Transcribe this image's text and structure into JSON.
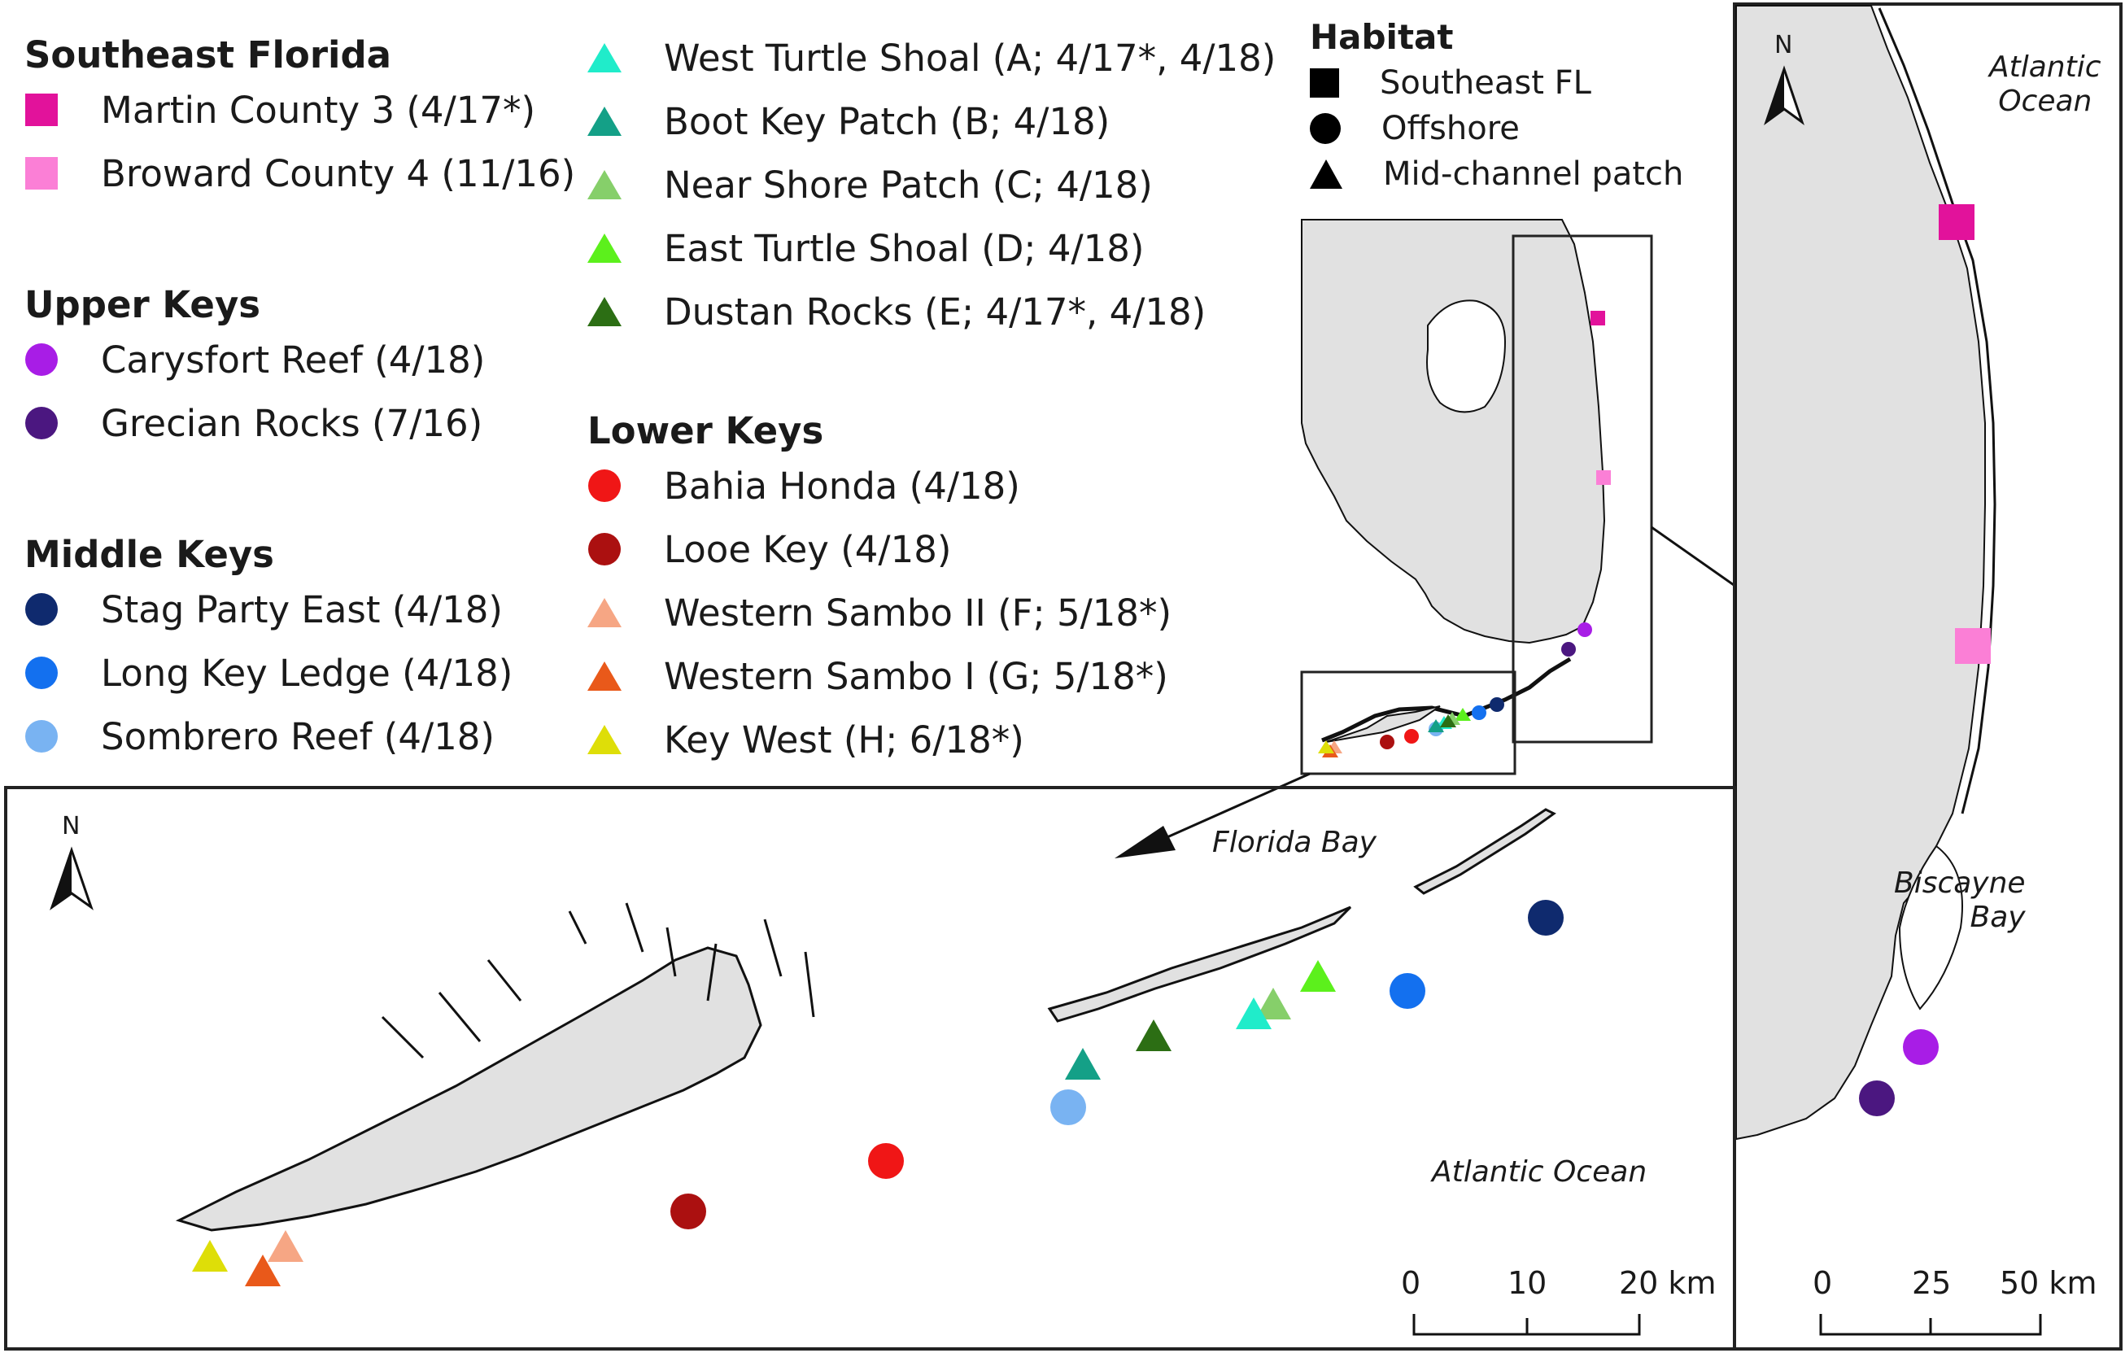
{
  "legend": {
    "groups": [
      {
        "title": "Southeast Florida",
        "sites": [
          {
            "label": "Martin County 3 (4/17*)",
            "shape": "square",
            "color": "#e2129b"
          },
          {
            "label": "Broward County 4 (11/16)",
            "shape": "square",
            "color": "#fb7fd6"
          }
        ]
      },
      {
        "title": "Upper Keys",
        "sites": [
          {
            "label": "Carysfort Reef (4/18)",
            "shape": "circle",
            "color": "#a81de6"
          },
          {
            "label": "Grecian Rocks (7/16)",
            "shape": "circle",
            "color": "#4b1780"
          }
        ]
      },
      {
        "title": "Middle Keys",
        "sites": [
          {
            "label": "Stag Party East (4/18)",
            "shape": "circle",
            "color": "#0f2a6e"
          },
          {
            "label": "Long Key Ledge (4/18)",
            "shape": "circle",
            "color": "#1370ef"
          },
          {
            "label": "Sombrero Reef (4/18)",
            "shape": "circle",
            "color": "#79b3f2"
          }
        ]
      },
      {
        "title": "",
        "sites": [
          {
            "label": "West Turtle Shoal (A; 4/17*, 4/18)",
            "shape": "triangle",
            "color": "#20ecca"
          },
          {
            "label": "Boot Key Patch (B; 4/18)",
            "shape": "triangle",
            "color": "#14a087"
          },
          {
            "label": "Near Shore Patch (C; 4/18)",
            "shape": "triangle",
            "color": "#86cf6a"
          },
          {
            "label": "East Turtle Shoal (D; 4/18)",
            "shape": "triangle",
            "color": "#5cf01c"
          },
          {
            "label": "Dustan Rocks (E; 4/17*, 4/18)",
            "shape": "triangle",
            "color": "#2c6e14"
          }
        ]
      },
      {
        "title": "Lower Keys",
        "sites": [
          {
            "label": "Bahia Honda (4/18)",
            "shape": "circle",
            "color": "#f01616"
          },
          {
            "label": "Looe Key (4/18)",
            "shape": "circle",
            "color": "#ab1010"
          },
          {
            "label": "Western Sambo II (F; 5/18*)",
            "shape": "triangle",
            "color": "#f6a684"
          },
          {
            "label": "Western Sambo I (G; 5/18*)",
            "shape": "triangle",
            "color": "#e9591a"
          },
          {
            "label": "Key West (H; 6/18*)",
            "shape": "triangle",
            "color": "#dede08"
          }
        ]
      }
    ]
  },
  "habitat": {
    "title": "Habitat",
    "items": [
      {
        "label": "Southeast FL",
        "shape": "square"
      },
      {
        "label": "Offshore",
        "shape": "circle"
      },
      {
        "label": "Mid-channel patch",
        "shape": "triangle"
      }
    ]
  },
  "labels": {
    "north": "N",
    "florida_bay": "Florida Bay",
    "atlantic_ocean": "Atlantic Ocean",
    "atlantic_ocean_line1": "Atlantic",
    "atlantic_ocean_line2": "Ocean",
    "biscayne_line1": "Biscayne",
    "biscayne_line2": "Bay"
  },
  "scale_keys": {
    "ticks": [
      "0",
      "10",
      "20 km"
    ]
  },
  "scale_coast": {
    "ticks": [
      "0",
      "25",
      "50 km"
    ]
  },
  "colors": {
    "land": "#e1e1e1",
    "coast": "#111111",
    "frame": "#222222"
  }
}
